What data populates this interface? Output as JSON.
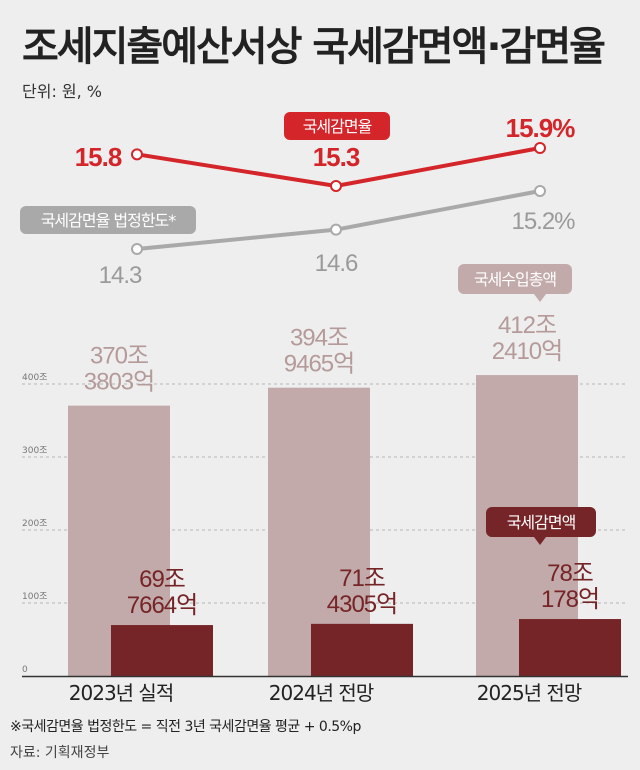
{
  "header": {
    "title": "조세지출예산서상 국세감면액·감면율",
    "unit": "단위: 원, %"
  },
  "chart_data": {
    "type": "bar+line",
    "categories": [
      "2023년 실적",
      "2024년 전망",
      "2025년 전망"
    ],
    "bar_series": [
      {
        "name": "국세수입총액",
        "values": [
          370.3803,
          394.9465,
          412.241
        ],
        "labels": [
          [
            "370조",
            "3803억"
          ],
          [
            "394조",
            "9465억"
          ],
          [
            "412조",
            "2410억"
          ]
        ],
        "color": "#c2aaaa",
        "label_color": "#b59a9a"
      },
      {
        "name": "국세감면액",
        "values": [
          69.7664,
          71.4305,
          78.0178
        ],
        "labels": [
          [
            "69조",
            "7664억"
          ],
          [
            "71조",
            "4305억"
          ],
          [
            "78조",
            "178억"
          ]
        ],
        "color": "#752427",
        "label_color": "#752427"
      }
    ],
    "line_series": [
      {
        "name": "국세감면율",
        "values": [
          15.8,
          15.3,
          15.9
        ],
        "labels": [
          "15.8",
          "15.3",
          "15.9%"
        ],
        "color": "#d4252b"
      },
      {
        "name": "국세감면율 법정한도*",
        "values": [
          14.3,
          14.6,
          15.2
        ],
        "labels": [
          "14.3",
          "14.6",
          "15.2%"
        ],
        "color": "#a9a9a9"
      }
    ],
    "y_axis": {
      "ylim": [
        0,
        400
      ],
      "ticks": [
        0,
        100,
        200,
        300,
        400
      ],
      "tick_labels": [
        "0",
        "100조",
        "200조",
        "300조",
        "400조"
      ]
    }
  },
  "footnote": "※국세감면율 법정한도 = 직전 3년 국세감면율 평균 + 0.5%p",
  "source": "자료: 기획재정부",
  "colors": {
    "rate_line": "#d4252b",
    "limit_line": "#a9a9a9",
    "total_bar": "#c2aaaa",
    "reduction_bar": "#752427"
  }
}
